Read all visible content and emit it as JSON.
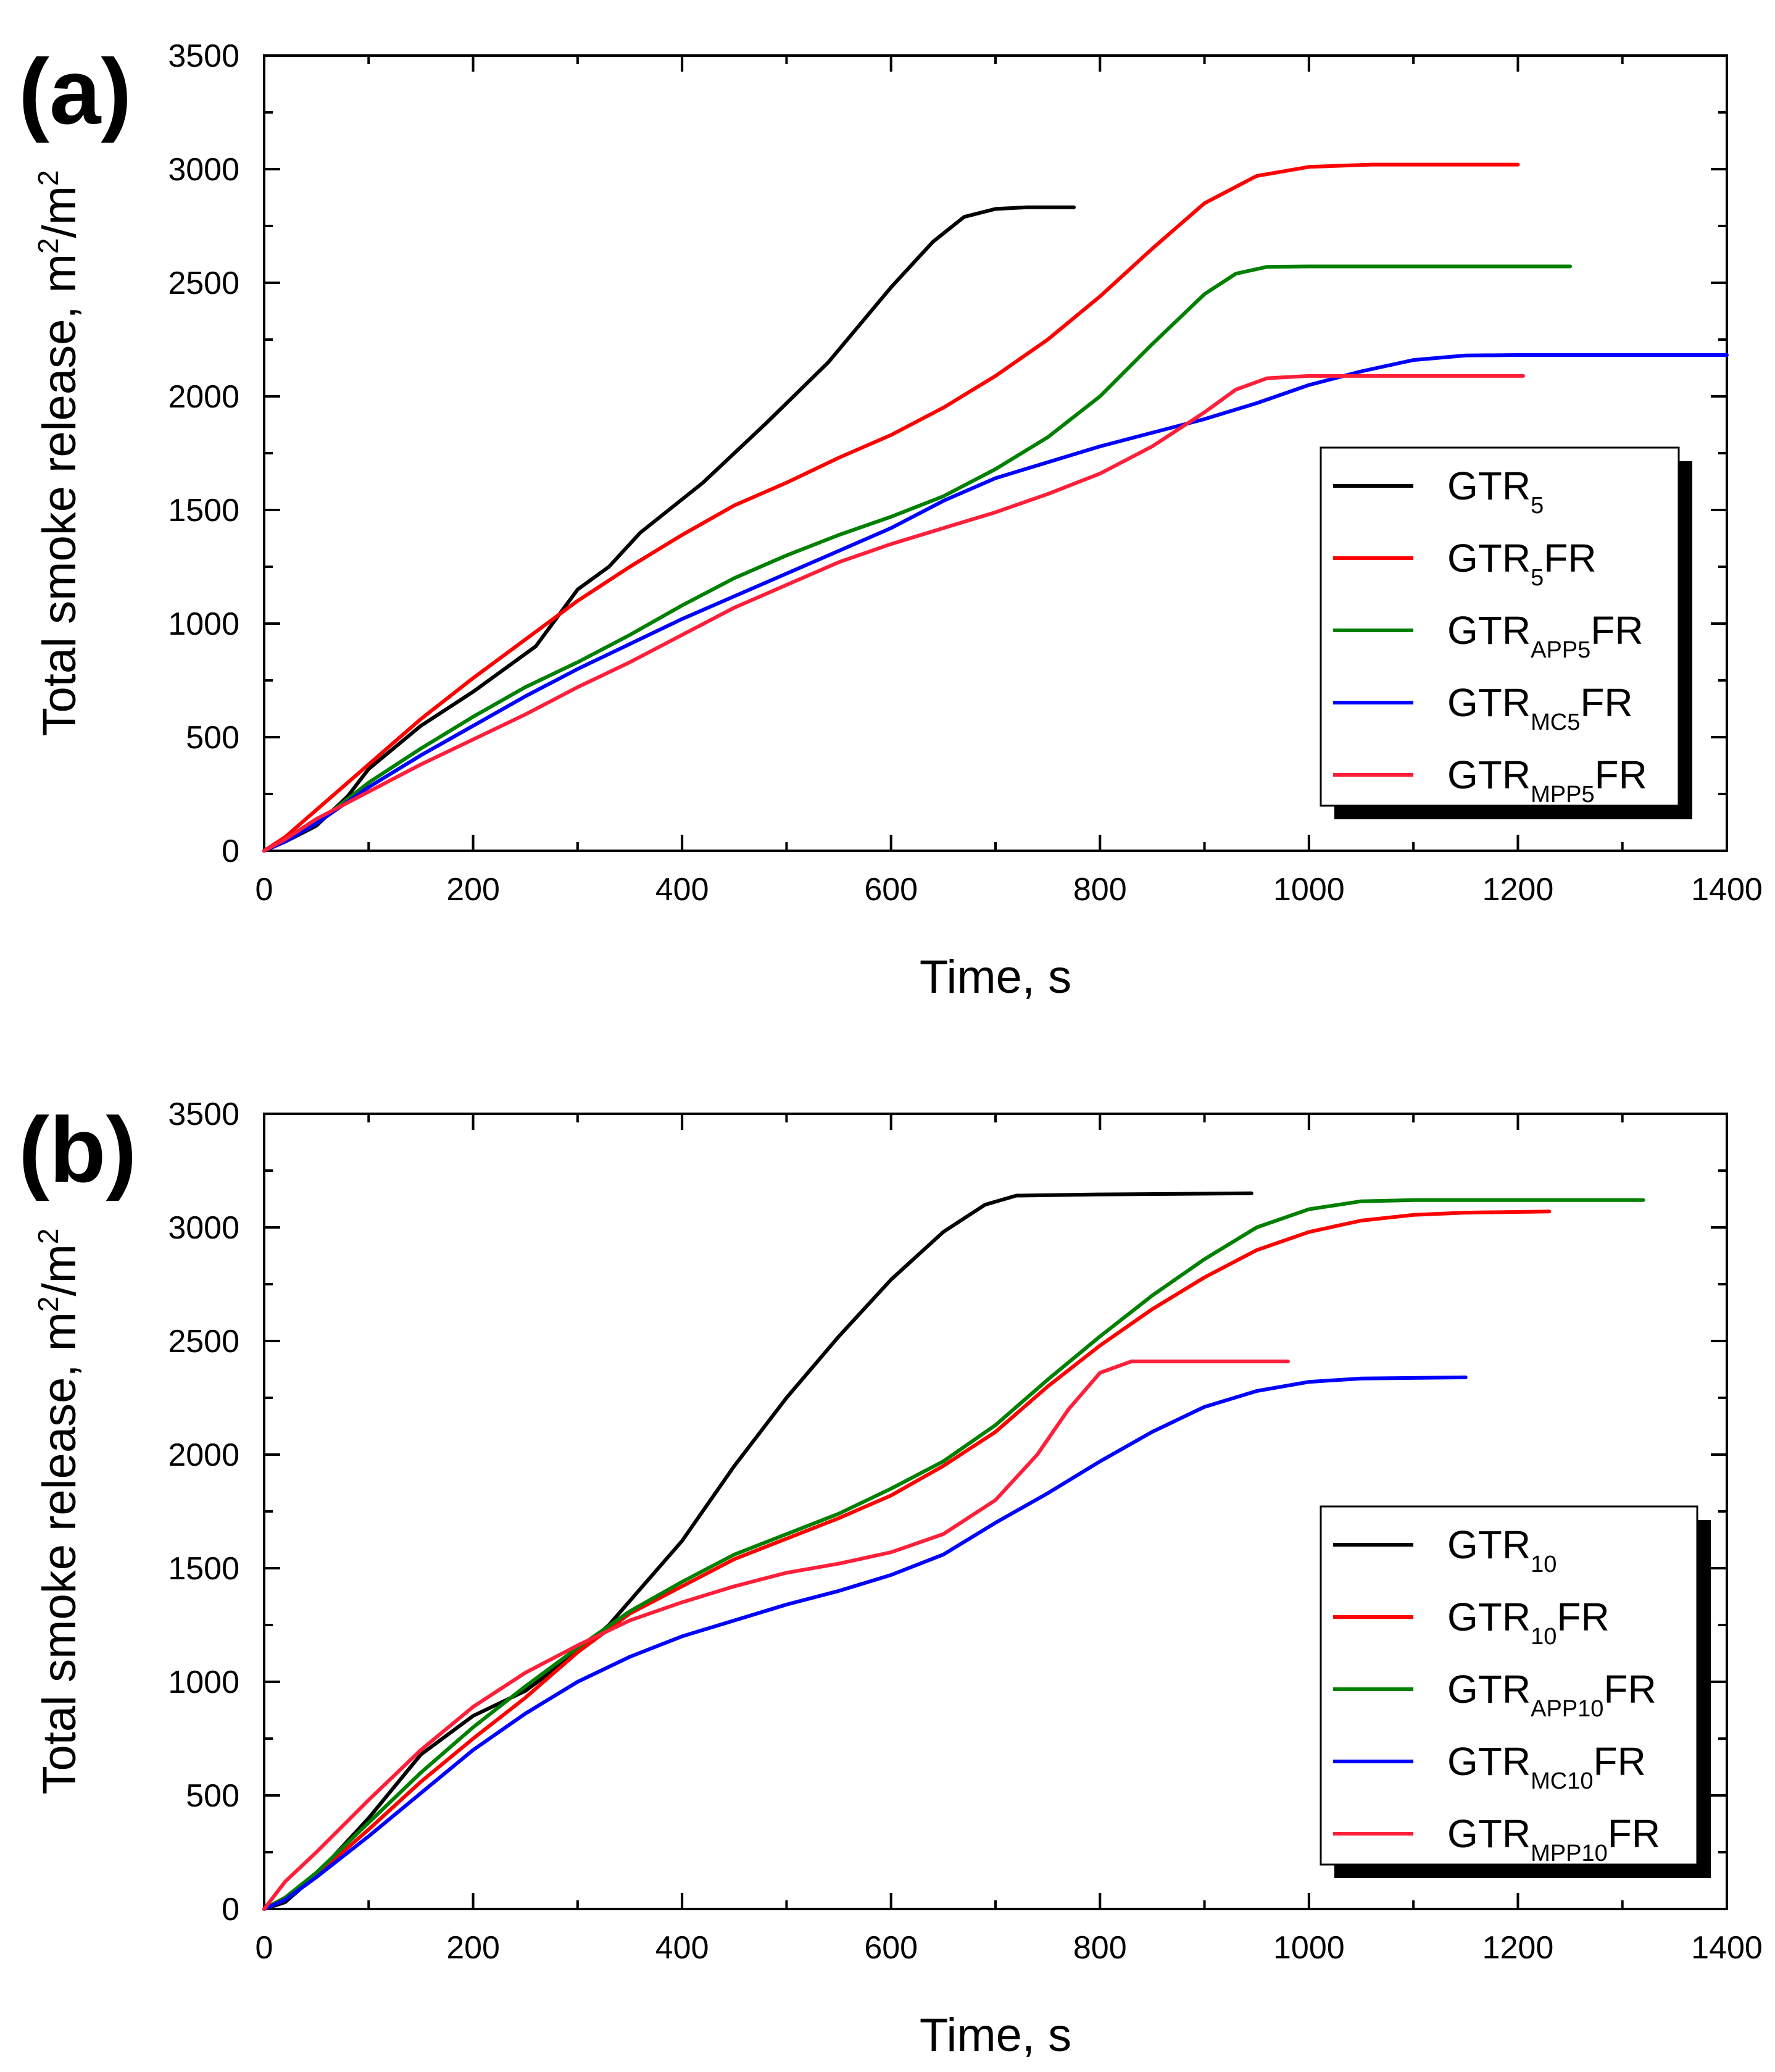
{
  "chart_data": [
    {
      "type": "line",
      "panel_label": "(a)",
      "xlabel": "Time, s",
      "ylabel": "Total smoke release, m2/m2",
      "ylabel_parts": {
        "base": "Total smoke release, m",
        "sup1": "2",
        "mid": "/m",
        "sup2": "2"
      },
      "xlim": [
        0,
        1400
      ],
      "ylim": [
        0,
        3500
      ],
      "xticks": [
        "0",
        "200",
        "400",
        "600",
        "800",
        "1000",
        "1200",
        "1400"
      ],
      "yticks": [
        "0",
        "500",
        "1000",
        "1500",
        "2000",
        "2500",
        "3000",
        "3500"
      ],
      "legend_position": "center-right",
      "series": [
        {
          "name": "GTR5",
          "label": {
            "base": "GTR",
            "sub": "5",
            "suffix": ""
          },
          "color": "#000000",
          "points": [
            [
              0,
              0
            ],
            [
              20,
              40
            ],
            [
              50,
              110
            ],
            [
              80,
              240
            ],
            [
              100,
              360
            ],
            [
              150,
              550
            ],
            [
              200,
              700
            ],
            [
              260,
              900
            ],
            [
              300,
              1150
            ],
            [
              330,
              1250
            ],
            [
              360,
              1400
            ],
            [
              420,
              1620
            ],
            [
              480,
              1880
            ],
            [
              540,
              2150
            ],
            [
              600,
              2480
            ],
            [
              640,
              2680
            ],
            [
              670,
              2790
            ],
            [
              700,
              2825
            ],
            [
              730,
              2832
            ],
            [
              775,
              2832
            ]
          ]
        },
        {
          "name": "GTR5FR",
          "label": {
            "base": "GTR",
            "sub": "5",
            "suffix": "FR"
          },
          "color": "#ff0000",
          "points": [
            [
              0,
              0
            ],
            [
              20,
              60
            ],
            [
              50,
              180
            ],
            [
              100,
              380
            ],
            [
              150,
              580
            ],
            [
              200,
              760
            ],
            [
              250,
              930
            ],
            [
              300,
              1100
            ],
            [
              350,
              1250
            ],
            [
              400,
              1390
            ],
            [
              450,
              1520
            ],
            [
              500,
              1620
            ],
            [
              550,
              1730
            ],
            [
              600,
              1830
            ],
            [
              650,
              1950
            ],
            [
              700,
              2090
            ],
            [
              750,
              2250
            ],
            [
              800,
              2440
            ],
            [
              850,
              2650
            ],
            [
              900,
              2850
            ],
            [
              950,
              2970
            ],
            [
              1000,
              3010
            ],
            [
              1060,
              3020
            ],
            [
              1200,
              3020
            ]
          ]
        },
        {
          "name": "GTRAPP5FR",
          "label": {
            "base": "GTR",
            "sub": "APP5",
            "suffix": "FR"
          },
          "color": "#008000",
          "points": [
            [
              0,
              0
            ],
            [
              20,
              40
            ],
            [
              50,
              120
            ],
            [
              100,
              300
            ],
            [
              150,
              450
            ],
            [
              200,
              590
            ],
            [
              250,
              720
            ],
            [
              300,
              830
            ],
            [
              350,
              950
            ],
            [
              400,
              1080
            ],
            [
              450,
              1200
            ],
            [
              500,
              1300
            ],
            [
              550,
              1390
            ],
            [
              600,
              1470
            ],
            [
              650,
              1560
            ],
            [
              700,
              1680
            ],
            [
              750,
              1820
            ],
            [
              800,
              2000
            ],
            [
              850,
              2230
            ],
            [
              900,
              2450
            ],
            [
              930,
              2540
            ],
            [
              960,
              2570
            ],
            [
              1000,
              2572
            ],
            [
              1250,
              2572
            ]
          ]
        },
        {
          "name": "GTRMC5FR",
          "label": {
            "base": "GTR",
            "sub": "MC5",
            "suffix": "FR"
          },
          "color": "#0000ff",
          "points": [
            [
              0,
              0
            ],
            [
              20,
              40
            ],
            [
              50,
              120
            ],
            [
              100,
              280
            ],
            [
              150,
              420
            ],
            [
              200,
              550
            ],
            [
              250,
              680
            ],
            [
              300,
              800
            ],
            [
              350,
              910
            ],
            [
              400,
              1020
            ],
            [
              450,
              1120
            ],
            [
              500,
              1220
            ],
            [
              550,
              1320
            ],
            [
              600,
              1420
            ],
            [
              650,
              1540
            ],
            [
              700,
              1640
            ],
            [
              750,
              1710
            ],
            [
              800,
              1780
            ],
            [
              850,
              1840
            ],
            [
              900,
              1900
            ],
            [
              950,
              1970
            ],
            [
              1000,
              2050
            ],
            [
              1050,
              2110
            ],
            [
              1100,
              2160
            ],
            [
              1150,
              2180
            ],
            [
              1200,
              2182
            ],
            [
              1400,
              2182
            ]
          ]
        },
        {
          "name": "GTRMPP5FR",
          "label": {
            "base": "GTR",
            "sub": "MPP5",
            "suffix": "FR"
          },
          "color": "#ff1f3a",
          "points": [
            [
              0,
              0
            ],
            [
              20,
              50
            ],
            [
              50,
              140
            ],
            [
              100,
              260
            ],
            [
              150,
              380
            ],
            [
              200,
              490
            ],
            [
              250,
              600
            ],
            [
              300,
              720
            ],
            [
              350,
              830
            ],
            [
              400,
              950
            ],
            [
              450,
              1070
            ],
            [
              500,
              1170
            ],
            [
              550,
              1270
            ],
            [
              600,
              1350
            ],
            [
              650,
              1420
            ],
            [
              700,
              1490
            ],
            [
              750,
              1570
            ],
            [
              800,
              1660
            ],
            [
              850,
              1780
            ],
            [
              900,
              1930
            ],
            [
              930,
              2030
            ],
            [
              960,
              2080
            ],
            [
              1000,
              2090
            ],
            [
              1205,
              2090
            ]
          ]
        }
      ]
    },
    {
      "type": "line",
      "panel_label": "(b)",
      "xlabel": "Time, s",
      "ylabel": "Total smoke release, m2/m2",
      "ylabel_parts": {
        "base": "Total smoke release, m",
        "sup1": "2",
        "mid": "/m",
        "sup2": "2"
      },
      "xlim": [
        0,
        1400
      ],
      "ylim": [
        0,
        3500
      ],
      "xticks": [
        "0",
        "200",
        "400",
        "600",
        "800",
        "1000",
        "1200",
        "1400"
      ],
      "yticks": [
        "0",
        "500",
        "1000",
        "1500",
        "2000",
        "2500",
        "3000",
        "3500"
      ],
      "legend_position": "lower-right",
      "series": [
        {
          "name": "GTR10",
          "label": {
            "base": "GTR",
            "sub": "10",
            "suffix": ""
          },
          "color": "#000000",
          "points": [
            [
              0,
              0
            ],
            [
              20,
              30
            ],
            [
              50,
              150
            ],
            [
              100,
              400
            ],
            [
              150,
              680
            ],
            [
              200,
              850
            ],
            [
              250,
              960
            ],
            [
              300,
              1130
            ],
            [
              330,
              1250
            ],
            [
              400,
              1620
            ],
            [
              450,
              1950
            ],
            [
              500,
              2250
            ],
            [
              550,
              2520
            ],
            [
              600,
              2770
            ],
            [
              650,
              2980
            ],
            [
              690,
              3100
            ],
            [
              720,
              3140
            ],
            [
              800,
              3145
            ],
            [
              945,
              3150
            ]
          ]
        },
        {
          "name": "GTR10FR",
          "label": {
            "base": "GTR",
            "sub": "10",
            "suffix": "FR"
          },
          "color": "#ff0000",
          "points": [
            [
              0,
              0
            ],
            [
              20,
              50
            ],
            [
              50,
              150
            ],
            [
              100,
              350
            ],
            [
              150,
              560
            ],
            [
              200,
              750
            ],
            [
              250,
              930
            ],
            [
              300,
              1130
            ],
            [
              350,
              1300
            ],
            [
              400,
              1420
            ],
            [
              450,
              1540
            ],
            [
              500,
              1630
            ],
            [
              550,
              1720
            ],
            [
              600,
              1820
            ],
            [
              650,
              1950
            ],
            [
              700,
              2100
            ],
            [
              750,
              2300
            ],
            [
              800,
              2480
            ],
            [
              850,
              2640
            ],
            [
              900,
              2780
            ],
            [
              950,
              2900
            ],
            [
              1000,
              2980
            ],
            [
              1050,
              3030
            ],
            [
              1100,
              3055
            ],
            [
              1150,
              3065
            ],
            [
              1230,
              3070
            ]
          ]
        },
        {
          "name": "GTRAPP10FR",
          "label": {
            "base": "GTR",
            "sub": "APP10",
            "suffix": "FR"
          },
          "color": "#008000",
          "points": [
            [
              0,
              0
            ],
            [
              20,
              50
            ],
            [
              50,
              160
            ],
            [
              100,
              380
            ],
            [
              150,
              600
            ],
            [
              200,
              800
            ],
            [
              250,
              980
            ],
            [
              300,
              1150
            ],
            [
              350,
              1310
            ],
            [
              400,
              1440
            ],
            [
              450,
              1560
            ],
            [
              500,
              1650
            ],
            [
              550,
              1740
            ],
            [
              600,
              1850
            ],
            [
              650,
              1970
            ],
            [
              700,
              2130
            ],
            [
              750,
              2330
            ],
            [
              800,
              2520
            ],
            [
              850,
              2700
            ],
            [
              900,
              2860
            ],
            [
              950,
              3000
            ],
            [
              1000,
              3080
            ],
            [
              1050,
              3115
            ],
            [
              1100,
              3120
            ],
            [
              1320,
              3120
            ]
          ]
        },
        {
          "name": "GTRMC10FR",
          "label": {
            "base": "GTR",
            "sub": "MC10",
            "suffix": "FR"
          },
          "color": "#0000ff",
          "points": [
            [
              0,
              0
            ],
            [
              20,
              40
            ],
            [
              50,
              140
            ],
            [
              100,
              320
            ],
            [
              150,
              510
            ],
            [
              200,
              700
            ],
            [
              250,
              860
            ],
            [
              300,
              1000
            ],
            [
              350,
              1110
            ],
            [
              400,
              1200
            ],
            [
              450,
              1270
            ],
            [
              500,
              1340
            ],
            [
              550,
              1400
            ],
            [
              600,
              1470
            ],
            [
              650,
              1560
            ],
            [
              700,
              1700
            ],
            [
              750,
              1830
            ],
            [
              800,
              1970
            ],
            [
              850,
              2100
            ],
            [
              900,
              2210
            ],
            [
              950,
              2280
            ],
            [
              1000,
              2320
            ],
            [
              1050,
              2335
            ],
            [
              1150,
              2340
            ]
          ]
        },
        {
          "name": "GTRMPP10FR",
          "label": {
            "base": "GTR",
            "sub": "MPP10",
            "suffix": "FR"
          },
          "color": "#ff1f3a",
          "points": [
            [
              0,
              0
            ],
            [
              20,
              120
            ],
            [
              50,
              250
            ],
            [
              100,
              480
            ],
            [
              150,
              700
            ],
            [
              200,
              890
            ],
            [
              250,
              1040
            ],
            [
              300,
              1160
            ],
            [
              350,
              1270
            ],
            [
              400,
              1350
            ],
            [
              450,
              1420
            ],
            [
              500,
              1480
            ],
            [
              550,
              1520
            ],
            [
              600,
              1570
            ],
            [
              650,
              1650
            ],
            [
              700,
              1800
            ],
            [
              740,
              2000
            ],
            [
              770,
              2200
            ],
            [
              800,
              2360
            ],
            [
              830,
              2410
            ],
            [
              980,
              2410
            ]
          ]
        }
      ]
    }
  ]
}
